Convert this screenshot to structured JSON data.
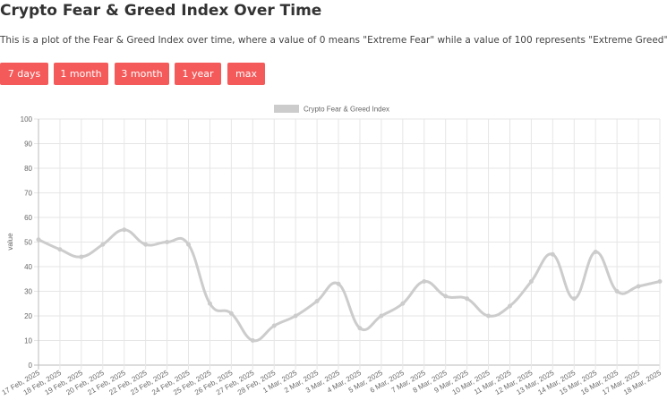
{
  "header": {
    "title": "Crypto Fear & Greed Index Over Time",
    "description": "This is a plot of the Fear & Greed Index over time, where a value of 0 means \"Extreme Fear\" while a value of 100 represents \"Extreme Greed\"."
  },
  "buttons": [
    {
      "label": "7 days"
    },
    {
      "label": "1 month"
    },
    {
      "label": "3 month"
    },
    {
      "label": "1 year"
    },
    {
      "label": "max"
    }
  ],
  "colors": {
    "button": "#f55a5a",
    "series": "#cccccc",
    "grid": "#e6e6e6"
  },
  "chart_data": {
    "type": "line",
    "title": "",
    "xlabel": "",
    "ylabel": "value",
    "ylim": [
      0,
      100
    ],
    "yticks": [
      0,
      10,
      20,
      30,
      40,
      50,
      60,
      70,
      80,
      90,
      100
    ],
    "grid": true,
    "legend": "top",
    "x": [
      "17 Feb, 2025",
      "18 Feb, 2025",
      "19 Feb, 2025",
      "20 Feb, 2025",
      "21 Feb, 2025",
      "22 Feb, 2025",
      "23 Feb, 2025",
      "24 Feb, 2025",
      "25 Feb, 2025",
      "26 Feb, 2025",
      "27 Feb, 2025",
      "28 Feb, 2025",
      "1 Mar, 2025",
      "2 Mar, 2025",
      "3 Mar, 2025",
      "4 Mar, 2025",
      "5 Mar, 2025",
      "6 Mar, 2025",
      "7 Mar, 2025",
      "8 Mar, 2025",
      "9 Mar, 2025",
      "10 Mar, 2025",
      "11 Mar, 2025",
      "12 Mar, 2025",
      "13 Mar, 2025",
      "14 Mar, 2025",
      "15 Mar, 2025",
      "16 Mar, 2025",
      "17 Mar, 2025",
      "18 Mar, 2025"
    ],
    "series": [
      {
        "name": "Crypto Fear & Greed Index",
        "values": [
          51,
          47,
          44,
          49,
          55,
          49,
          50,
          49,
          25,
          21,
          10,
          16,
          20,
          26,
          33,
          15,
          20,
          25,
          34,
          28,
          27,
          20,
          24,
          34,
          45,
          27,
          46,
          30,
          32,
          34
        ]
      }
    ]
  }
}
